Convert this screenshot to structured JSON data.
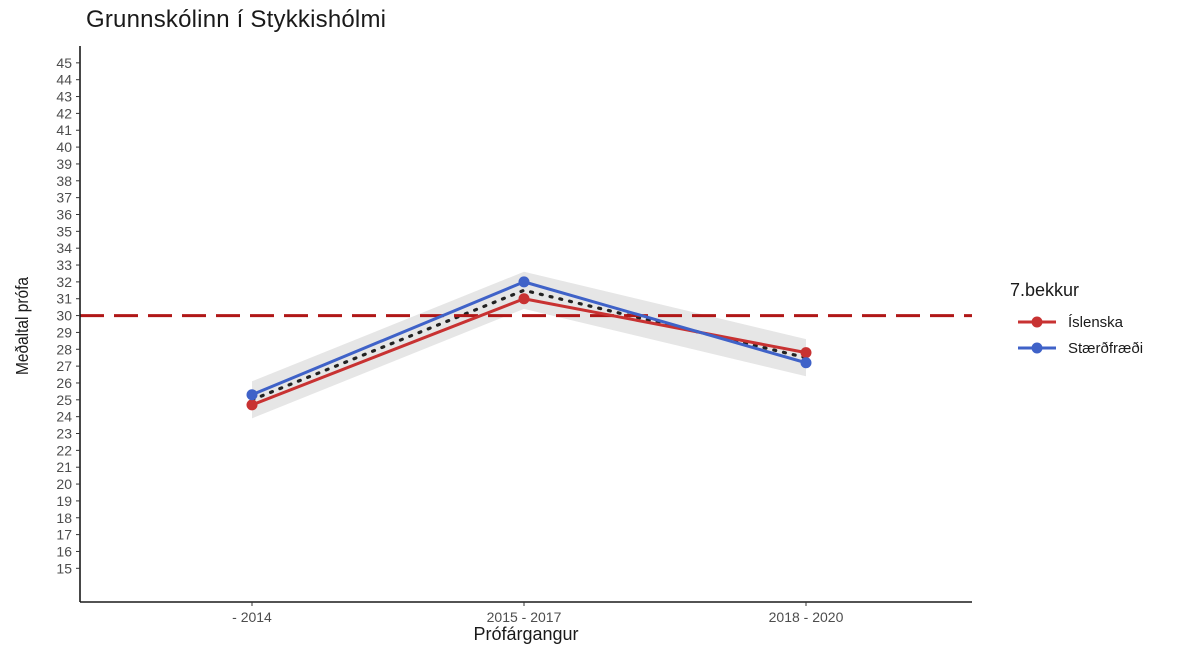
{
  "chart_data": {
    "type": "line",
    "title": "Grunnskólinn í Stykkishólmi",
    "xlabel": "Prófárgangur",
    "ylabel": "Meðaltal prófa",
    "categories": [
      "- 2014",
      "2015 - 2017",
      "2018 - 2020"
    ],
    "ylim": [
      13,
      46
    ],
    "yticks": [
      15,
      16,
      17,
      18,
      19,
      20,
      21,
      22,
      23,
      24,
      25,
      26,
      27,
      28,
      29,
      30,
      31,
      32,
      33,
      34,
      35,
      36,
      37,
      38,
      39,
      40,
      41,
      42,
      43,
      44,
      45
    ],
    "legend_title": "7.bekkur",
    "legend_position": "right",
    "grid": false,
    "series": [
      {
        "name": "Íslenska",
        "color": "#c83232",
        "values": [
          24.7,
          31.0,
          27.8
        ]
      },
      {
        "name": "Stærðfræði",
        "color": "#3f62c8",
        "values": [
          25.3,
          32.0,
          27.2
        ]
      }
    ],
    "mean_trend": {
      "values": [
        25.0,
        31.5,
        27.5
      ],
      "band_lower": [
        23.9,
        30.4,
        26.4
      ],
      "band_upper": [
        26.1,
        32.6,
        28.6
      ],
      "line_color": "#222222",
      "band_color": "#e6e6e6"
    },
    "reference_line": {
      "value": 30,
      "color": "#b01717"
    }
  }
}
